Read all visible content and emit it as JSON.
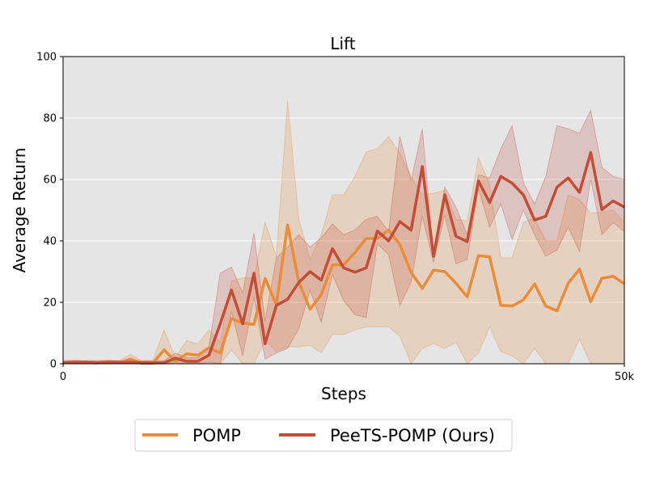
{
  "chart_data": {
    "type": "line",
    "title": "Lift",
    "xlabel": "Steps",
    "ylabel": "Average Return",
    "xlim": [
      0,
      50000
    ],
    "ylim": [
      0,
      100
    ],
    "x_ticks": [
      {
        "value": 0,
        "label": "0"
      },
      {
        "value": 50000,
        "label": "50k"
      }
    ],
    "y_ticks": [
      0,
      20,
      40,
      60,
      80,
      100
    ],
    "grid": "horizontal",
    "legend_position": "bottom-center",
    "colors": {
      "background": "#e5e5e5",
      "POMP": "#e98c3b",
      "PeeTS-POMP (Ours)": "#c24e3a"
    },
    "x": [
      0,
      1000,
      2000,
      3000,
      4000,
      5000,
      6000,
      7000,
      8000,
      9000,
      10000,
      11000,
      12000,
      13000,
      14000,
      15000,
      16000,
      17000,
      18000,
      19000,
      20000,
      21000,
      22000,
      23000,
      24000,
      25000,
      26000,
      27000,
      28000,
      29000,
      30000,
      31000,
      32000,
      33000,
      34000,
      35000,
      36000,
      37000,
      38000,
      39000,
      40000,
      41000,
      42000,
      43000,
      44000,
      45000,
      46000,
      47000,
      48000,
      49000,
      50000
    ],
    "series": [
      {
        "name": "POMP",
        "values": [
          0.3,
          0.5,
          0.4,
          0.3,
          0.5,
          0.3,
          1.5,
          0.2,
          0.2,
          4.5,
          0.8,
          3.2,
          2.8,
          5.2,
          3.5,
          14.8,
          13.2,
          12.8,
          27.8,
          19.2,
          45.2,
          26.5,
          17.8,
          22.5,
          32.2,
          32.2,
          36.2,
          40.8,
          40.8,
          43.5,
          38.8,
          29.8,
          24.5,
          30.5,
          30.0,
          26.2,
          21.8,
          35.2,
          34.8,
          19.0,
          18.8,
          20.8,
          26.0,
          18.8,
          17.2,
          26.2,
          30.8,
          20.2,
          27.8,
          28.5,
          26.0
        ],
        "lower": [
          0,
          0,
          0,
          0,
          0,
          0,
          0,
          0,
          0,
          0,
          0,
          0,
          0,
          0,
          0,
          4.5,
          0,
          0,
          7.5,
          4,
          5.5,
          5.5,
          6,
          3.5,
          9.5,
          9.5,
          11,
          12,
          12,
          12,
          9,
          0,
          5,
          6.5,
          5,
          7,
          0,
          3.5,
          12,
          4,
          2.5,
          0,
          5,
          0,
          0,
          0,
          8,
          0,
          0,
          0,
          0
        ],
        "upper": [
          1,
          1.2,
          1,
          1,
          1.2,
          1,
          3,
          1,
          1,
          11,
          2,
          7.5,
          6.5,
          11,
          7,
          27,
          28,
          28,
          46,
          35,
          85.5,
          47,
          34,
          42,
          55,
          55,
          61,
          69,
          70,
          74,
          68.5,
          61,
          55,
          55.5,
          56.5,
          47,
          46.5,
          67,
          58.5,
          34.5,
          34.5,
          46,
          47.5,
          40,
          40,
          55,
          53.5,
          49,
          49.5,
          50,
          46
        ]
      },
      {
        "name": "PeeTS-POMP (Ours)",
        "values": [
          0.3,
          0.5,
          0.5,
          0.3,
          0.5,
          0.5,
          0.5,
          0.3,
          0.3,
          0.3,
          1.8,
          0.8,
          0.8,
          2.8,
          13.0,
          24.0,
          13.0,
          29.5,
          6.5,
          19.0,
          21.0,
          26.5,
          30.0,
          27.2,
          37.5,
          31.2,
          29.8,
          31.2,
          43.2,
          40.0,
          46.3,
          43.5,
          64.2,
          35.0,
          55.0,
          41.5,
          39.8,
          59.5,
          52.5,
          61.0,
          58.8,
          55.0,
          46.8,
          48.0,
          57.5,
          60.5,
          55.8,
          68.8,
          50.2,
          53.0,
          51.0
        ],
        "lower": [
          0,
          0,
          0,
          0,
          0,
          0,
          0,
          0,
          0,
          0,
          0.5,
          0,
          0,
          0.5,
          0,
          17,
          2.5,
          21.5,
          1.5,
          3.5,
          5,
          11.5,
          24,
          13.5,
          29,
          20.5,
          16,
          15,
          39,
          35.5,
          19,
          26.5,
          48,
          33,
          48.5,
          32.5,
          34,
          57,
          44.5,
          52,
          40.5,
          50,
          42,
          35,
          37,
          44.5,
          36.5,
          60,
          42,
          46,
          43
        ],
        "upper": [
          1,
          1,
          1,
          1,
          1,
          1,
          1,
          1,
          1,
          1,
          3.5,
          2,
          2,
          5.5,
          29.5,
          31.5,
          23,
          42.5,
          14,
          34.5,
          38,
          42,
          38,
          41,
          45.5,
          42,
          43.5,
          47,
          48,
          43,
          74,
          59.5,
          76.5,
          35.5,
          57.5,
          51,
          42,
          61.5,
          60.5,
          70,
          77.5,
          59,
          52,
          61,
          77.5,
          76.5,
          75,
          82.5,
          64,
          61,
          60
        ]
      }
    ]
  },
  "legend": {
    "items": [
      {
        "label": "POMP",
        "color": "#e98c3b"
      },
      {
        "label": "PeeTS-POMP (Ours)",
        "color": "#c24e3a"
      }
    ]
  }
}
